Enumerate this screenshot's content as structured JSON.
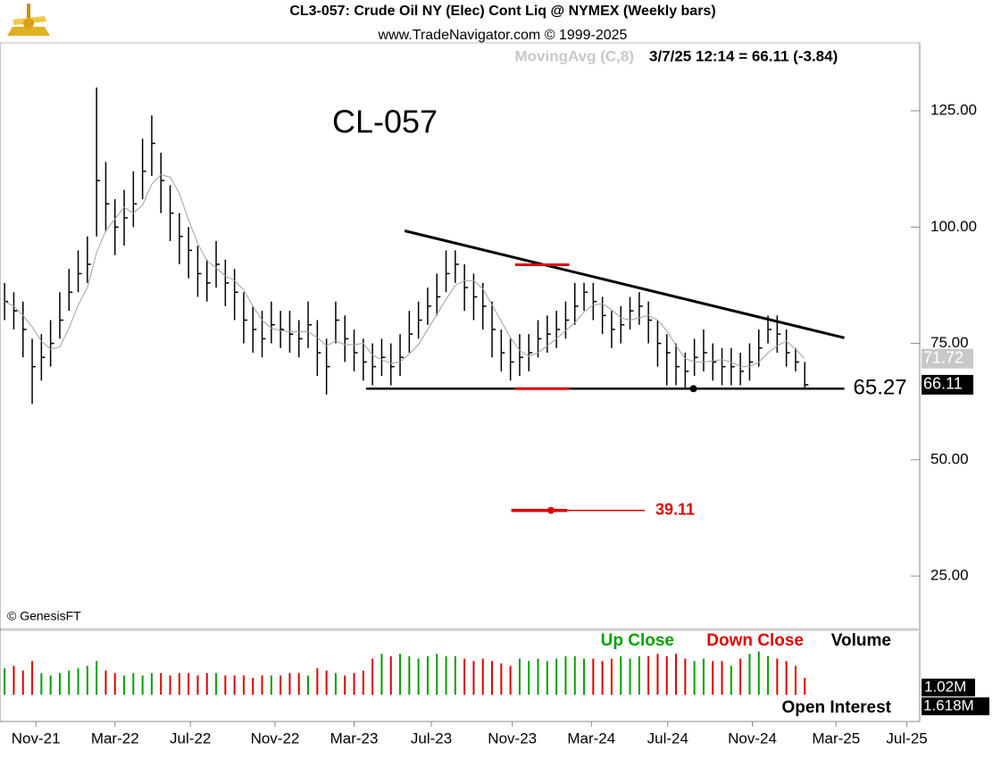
{
  "chart_data": {
    "type": "ohlc",
    "title": "CL3-057:  Crude Oil NY (Elec) Cont Liq @ NYMEX  (Weekly bars)",
    "subtitle": "www.TradeNavigator.com © 1999-2025",
    "ma_label": "MovingAvg (C,8)",
    "quote": "3/7/25 12:14 = 66.11 (-3.84)",
    "watermark": "CL-057",
    "credit": "© GenesisFT",
    "xlim": [
      -0.5,
      99.5
    ],
    "xticks": [
      {
        "value": 3.4,
        "label": "Nov-21"
      },
      {
        "value": 12.0,
        "label": "Mar-22"
      },
      {
        "value": 20.2,
        "label": "Jul-22"
      },
      {
        "value": 29.4,
        "label": "Nov-22"
      },
      {
        "value": 38.0,
        "label": "Mar-23"
      },
      {
        "value": 46.4,
        "label": "Jul-23"
      },
      {
        "value": 55.2,
        "label": "Nov-23"
      },
      {
        "value": 63.8,
        "label": "Mar-24"
      },
      {
        "value": 72.1,
        "label": "Jul-24"
      },
      {
        "value": 81.3,
        "label": "Nov-24"
      },
      {
        "value": 90.4,
        "label": "Mar-25"
      },
      {
        "value": 98.1,
        "label": "Jul-25"
      }
    ],
    "ylim": [
      13.5,
      139.6
    ],
    "yticks": [
      {
        "value": 25,
        "label": "25.00"
      },
      {
        "value": 50,
        "label": "50.00"
      },
      {
        "value": 75,
        "label": "75.00"
      },
      {
        "value": 100,
        "label": "100.00"
      },
      {
        "value": 125,
        "label": "125.00"
      }
    ],
    "bar_color": "#000000",
    "ma_color": "#a0a0a0",
    "high": [
      88,
      86,
      84,
      76,
      77,
      80,
      86,
      91,
      95,
      98,
      130,
      114,
      106,
      108,
      112,
      119,
      124,
      116,
      109,
      103,
      100,
      96,
      93,
      97,
      93,
      91,
      86,
      83,
      82,
      84,
      82,
      82,
      80,
      84,
      80,
      76,
      84,
      81,
      78,
      76,
      75,
      76,
      75,
      77,
      82,
      84,
      87,
      90,
      95,
      95,
      92,
      90,
      88,
      84,
      78,
      76,
      77,
      77,
      80,
      81,
      82,
      84,
      88,
      88,
      88,
      85,
      82,
      83,
      85,
      86,
      84,
      80,
      77,
      75,
      73,
      76,
      78,
      75,
      74,
      74,
      73,
      75,
      78,
      81,
      81,
      78,
      74,
      71
    ],
    "low": [
      80,
      78,
      72,
      62,
      67,
      70,
      76,
      82,
      86,
      88,
      98,
      99,
      94,
      96,
      100,
      106,
      111,
      103,
      97,
      92,
      89,
      85,
      84,
      87,
      83,
      80,
      75,
      73,
      72,
      75,
      74,
      73,
      72,
      74,
      68,
      64,
      75,
      71,
      69,
      67,
      66,
      68,
      66,
      68,
      73,
      76,
      79,
      81,
      86,
      88,
      82,
      80,
      78,
      72,
      69,
      67,
      68,
      69,
      72,
      73,
      74,
      76,
      79,
      82,
      80,
      77,
      74,
      75,
      78,
      79,
      75,
      70,
      66,
      66,
      65,
      68,
      69,
      67,
      66,
      66,
      66,
      67,
      70,
      75,
      73,
      70,
      69,
      65.5
    ],
    "close": [
      84,
      82,
      78,
      70,
      72,
      75,
      80,
      86,
      90,
      92,
      110,
      105,
      100,
      102,
      105,
      112,
      118,
      110,
      103,
      98,
      95,
      90,
      88,
      92,
      88,
      86,
      80,
      78,
      76,
      79,
      78,
      77,
      76,
      79,
      73,
      70,
      80,
      76,
      73,
      71,
      70,
      72,
      70,
      72,
      77,
      80,
      83,
      85,
      90,
      92,
      87,
      85,
      83,
      78,
      73,
      71,
      72,
      73,
      76,
      77,
      78,
      80,
      83,
      86,
      84,
      81,
      78,
      79,
      82,
      83,
      80,
      75,
      73,
      70,
      69,
      72,
      73,
      71,
      70,
      70,
      69,
      71,
      74,
      78,
      77,
      73,
      71,
      66.11
    ],
    "moving_average": [
      84,
      83,
      81,
      78.5,
      75.5,
      73.75,
      74.25,
      78.25,
      83.25,
      87,
      94.5,
      99.25,
      101.75,
      104.25,
      103,
      104.75,
      109.25,
      111.25,
      110.75,
      107.25,
      101.5,
      96.5,
      92.75,
      91.25,
      89.5,
      88.5,
      86.5,
      83,
      80,
      78.25,
      77.75,
      77.5,
      77.5,
      77.5,
      76.25,
      74.5,
      75.5,
      74.75,
      74.75,
      75,
      72.5,
      71.5,
      70.75,
      71,
      72.75,
      74.75,
      78,
      81.25,
      84.5,
      87.5,
      88.5,
      88.5,
      86.75,
      83.25,
      79.75,
      76.25,
      73.5,
      72.25,
      73,
      74.5,
      76,
      77.75,
      79.5,
      81.75,
      83.25,
      83.5,
      82.25,
      80.5,
      80,
      80.5,
      81,
      80,
      77.75,
      74.5,
      71.75,
      71,
      71,
      71.25,
      71.5,
      71,
      70,
      70,
      71,
      73,
      74.5,
      75.5,
      73.75,
      71.72
    ],
    "trendline": {
      "x": [
        43.5,
        91.3
      ],
      "y": [
        99.2,
        76.2
      ]
    },
    "support": {
      "x": [
        39.3,
        91.3
      ],
      "value": 65.27,
      "dot_x": 74.9
    },
    "red_marks": {
      "x": [
        55.5,
        61.4
      ],
      "values": [
        91.9,
        65.27
      ]
    },
    "target": {
      "x": [
        55.1,
        69.6
      ],
      "dot_x": 59.4,
      "value": 39.11
    },
    "volume": {
      "title": "Volume",
      "up_label": "Up Close",
      "down_label": "Down Close",
      "up_color": "#00a000",
      "down_color": "#e00000",
      "ylim": [
        0,
        1.3
      ],
      "scale_label": "1.02M",
      "values": [
        0.55,
        0.6,
        0.5,
        0.7,
        0.45,
        0.4,
        0.45,
        0.5,
        0.55,
        0.6,
        0.7,
        0.5,
        0.45,
        0.4,
        0.45,
        0.4,
        0.45,
        0.45,
        0.4,
        0.45,
        0.45,
        0.4,
        0.45,
        0.45,
        0.4,
        0.4,
        0.4,
        0.35,
        0.4,
        0.4,
        0.4,
        0.45,
        0.45,
        0.4,
        0.55,
        0.5,
        0.45,
        0.4,
        0.45,
        0.5,
        0.75,
        0.85,
        0.8,
        0.85,
        0.8,
        0.75,
        0.8,
        0.85,
        0.8,
        0.8,
        0.75,
        0.7,
        0.75,
        0.7,
        0.65,
        0.6,
        0.75,
        0.7,
        0.75,
        0.7,
        0.75,
        0.8,
        0.8,
        0.75,
        0.75,
        0.7,
        0.75,
        0.8,
        0.75,
        0.8,
        0.8,
        0.85,
        0.8,
        0.85,
        0.75,
        0.7,
        0.75,
        0.7,
        0.7,
        0.6,
        0.75,
        0.85,
        0.9,
        0.8,
        0.75,
        0.7,
        0.6,
        0.35
      ]
    },
    "open_interest": {
      "title": "Open Interest",
      "label": "1.618M"
    }
  }
}
